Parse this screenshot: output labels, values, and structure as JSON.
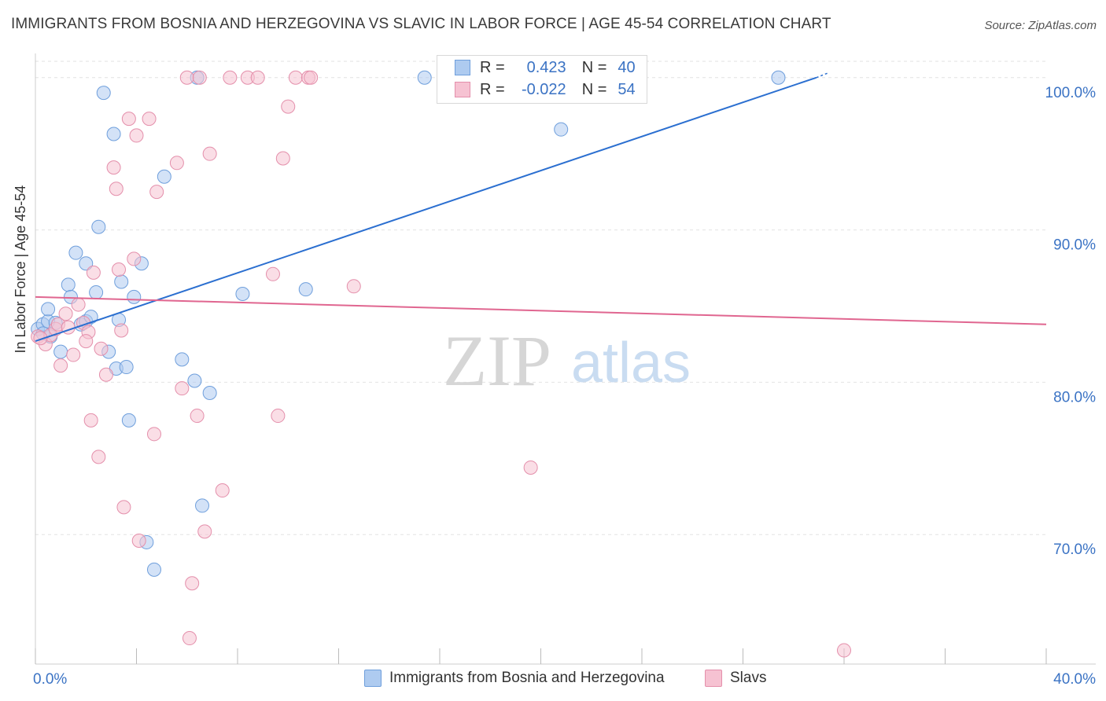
{
  "title": "IMMIGRANTS FROM BOSNIA AND HERZEGOVINA VS SLAVIC IN LABOR FORCE | AGE 45-54 CORRELATION CHART",
  "source": "Source: ZipAtlas.com",
  "watermark": {
    "zip": "ZIP",
    "atlas": "atlas"
  },
  "legend_stats": [
    {
      "r_label": "R =",
      "r_value": "0.423",
      "n_label": "N =",
      "n_value": "40"
    },
    {
      "r_label": "R =",
      "r_value": "-0.022",
      "n_label": "N =",
      "n_value": "54"
    }
  ],
  "colors": {
    "blue_fill": "#aecbf0",
    "blue_stroke": "#6f9fdc",
    "blue_line": "#2b6fd0",
    "pink_fill": "#f6c2d2",
    "pink_stroke": "#e48fab",
    "pink_line": "#e06690",
    "axis_text": "#3b73c4",
    "grid": "#e2e2e2"
  },
  "chart_data": {
    "type": "scatter",
    "title": "IMMIGRANTS FROM BOSNIA AND HERZEGOVINA VS SLAVIC IN LABOR FORCE | AGE 45-54 CORRELATION CHART",
    "xlabel": "",
    "ylabel": "In Labor Force | Age 45-54",
    "xlim": [
      0,
      40
    ],
    "ylim": [
      61.5,
      102
    ],
    "x_tick_labels": [
      "0.0%",
      "40.0%"
    ],
    "y_ticks": [
      70,
      80,
      90,
      100
    ],
    "y_tick_labels": [
      "70.0%",
      "80.0%",
      "90.0%",
      "100.0%"
    ],
    "series": [
      {
        "name": "Immigrants from Bosnia and Herzegovina",
        "color": "blue",
        "points": [
          [
            0.1,
            83.5
          ],
          [
            0.3,
            83.8
          ],
          [
            0.5,
            84.0
          ],
          [
            0.5,
            84.8
          ],
          [
            0.6,
            83.0
          ],
          [
            0.8,
            83.9
          ],
          [
            1.0,
            82.0
          ],
          [
            1.3,
            86.4
          ],
          [
            1.4,
            85.6
          ],
          [
            1.6,
            88.5
          ],
          [
            1.8,
            83.8
          ],
          [
            2.0,
            84.0
          ],
          [
            2.0,
            87.8
          ],
          [
            2.2,
            84.3
          ],
          [
            2.4,
            85.9
          ],
          [
            2.5,
            90.2
          ],
          [
            2.7,
            99.0
          ],
          [
            2.9,
            82.0
          ],
          [
            3.1,
            96.3
          ],
          [
            3.2,
            80.9
          ],
          [
            3.3,
            84.1
          ],
          [
            3.4,
            86.6
          ],
          [
            3.6,
            81.0
          ],
          [
            3.7,
            77.5
          ],
          [
            3.9,
            85.6
          ],
          [
            4.2,
            87.8
          ],
          [
            4.4,
            69.5
          ],
          [
            4.7,
            67.7
          ],
          [
            5.1,
            93.5
          ],
          [
            5.8,
            81.5
          ],
          [
            6.3,
            80.1
          ],
          [
            6.4,
            100.0
          ],
          [
            6.6,
            71.9
          ],
          [
            6.9,
            79.3
          ],
          [
            8.2,
            85.8
          ],
          [
            10.7,
            86.1
          ],
          [
            15.4,
            100.0
          ],
          [
            20.8,
            96.6
          ],
          [
            29.4,
            100.0
          ],
          [
            0.3,
            83.2
          ]
        ]
      },
      {
        "name": "Slavs",
        "color": "pink",
        "points": [
          [
            0.1,
            83.0
          ],
          [
            0.4,
            82.5
          ],
          [
            0.6,
            83.1
          ],
          [
            0.8,
            83.5
          ],
          [
            1.0,
            81.1
          ],
          [
            1.2,
            84.5
          ],
          [
            1.5,
            81.8
          ],
          [
            1.7,
            85.1
          ],
          [
            1.9,
            83.9
          ],
          [
            2.1,
            83.3
          ],
          [
            2.2,
            77.5
          ],
          [
            2.3,
            87.2
          ],
          [
            2.5,
            75.1
          ],
          [
            2.6,
            82.2
          ],
          [
            2.8,
            80.5
          ],
          [
            3.1,
            94.1
          ],
          [
            3.2,
            92.7
          ],
          [
            3.3,
            87.4
          ],
          [
            3.5,
            71.8
          ],
          [
            3.7,
            97.3
          ],
          [
            3.9,
            88.1
          ],
          [
            4.0,
            96.2
          ],
          [
            4.1,
            69.6
          ],
          [
            4.5,
            97.3
          ],
          [
            4.7,
            76.6
          ],
          [
            4.8,
            92.5
          ],
          [
            5.6,
            94.4
          ],
          [
            5.8,
            79.6
          ],
          [
            6.0,
            100.0
          ],
          [
            6.1,
            63.2
          ],
          [
            6.2,
            66.8
          ],
          [
            6.4,
            77.8
          ],
          [
            6.5,
            100.0
          ],
          [
            6.7,
            70.2
          ],
          [
            6.9,
            95.0
          ],
          [
            7.4,
            72.9
          ],
          [
            7.7,
            100.0
          ],
          [
            8.4,
            100.0
          ],
          [
            8.8,
            100.0
          ],
          [
            9.4,
            87.1
          ],
          [
            9.6,
            77.8
          ],
          [
            9.8,
            94.7
          ],
          [
            10.0,
            98.1
          ],
          [
            10.3,
            100.0
          ],
          [
            10.8,
            100.0
          ],
          [
            10.9,
            100.0
          ],
          [
            12.6,
            86.3
          ],
          [
            19.6,
            74.4
          ],
          [
            32.0,
            62.4
          ],
          [
            0.9,
            83.8
          ],
          [
            1.3,
            83.6
          ],
          [
            2.0,
            82.7
          ],
          [
            3.4,
            83.4
          ],
          [
            0.2,
            82.9
          ]
        ]
      }
    ],
    "trend_lines": [
      {
        "series": "Immigrants from Bosnia and Herzegovina",
        "x0": 0,
        "y0": 82.7,
        "x1": 30.9,
        "y1": 100.0,
        "dashed_to_x": 31.0
      },
      {
        "series": "Slavs",
        "x0": 0,
        "y0": 85.6,
        "x1": 40,
        "y1": 83.8
      }
    ],
    "legend": [
      "Immigrants from Bosnia and Herzegovina",
      "Slavs"
    ],
    "legend_position": "bottom-center"
  }
}
